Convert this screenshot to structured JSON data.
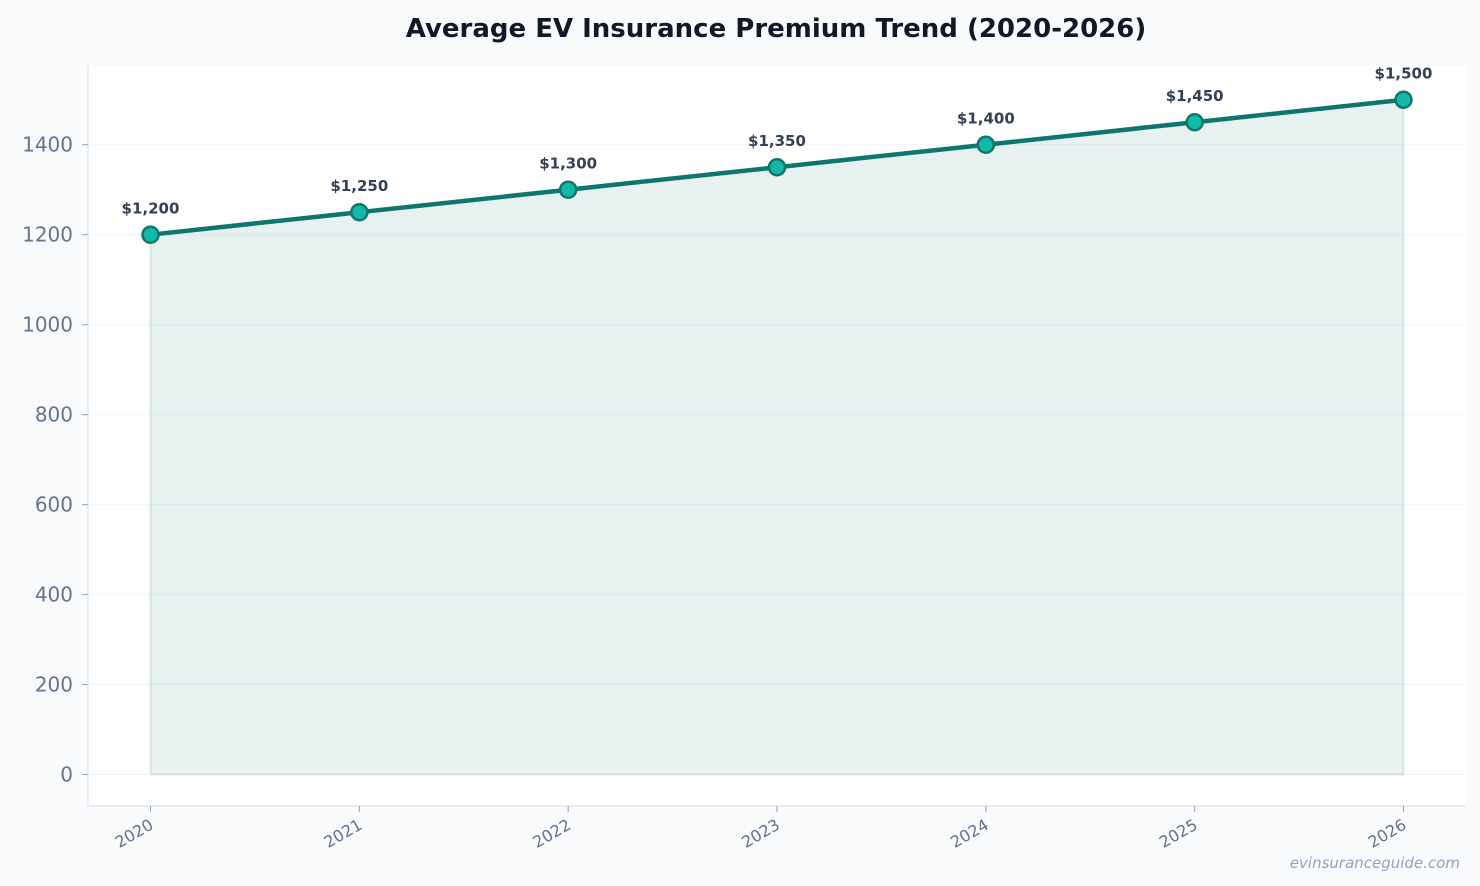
{
  "chart_data": {
    "type": "area",
    "title": "Average EV Insurance Premium Trend (2020-2026)",
    "xlabel": "",
    "ylabel": "",
    "categories": [
      "2020",
      "2021",
      "2022",
      "2023",
      "2024",
      "2025",
      "2026"
    ],
    "series": [
      {
        "values": [
          1200,
          1250,
          1300,
          1350,
          1400,
          1450,
          1500
        ],
        "data_labels": [
          "$1,200",
          "$1,250",
          "$1,300",
          "$1,350",
          "$1,400",
          "$1,450",
          "$1,500"
        ]
      }
    ],
    "ylim": [
      -70,
      1575
    ],
    "yticks": [
      0,
      200,
      400,
      600,
      800,
      1000,
      1200,
      1400
    ],
    "grid": true,
    "legend": "none",
    "colors": {
      "line": "#0f766e",
      "marker_fill": "#14b8a6",
      "fill": "#0f766e",
      "grid": "#f1f5f9",
      "axis": "#e2e8f0"
    }
  },
  "watermark": "evinsuranceguide.com"
}
